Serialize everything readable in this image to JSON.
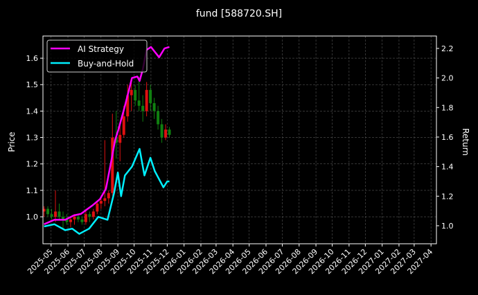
{
  "chart_data": {
    "type": "line",
    "title": "fund [588720.SH]",
    "ylabel_left": "Price",
    "ylabel_right": "Return",
    "xlim": [
      "2025-04-16",
      "2027-04-11"
    ],
    "ylim_left": [
      0.898,
      1.684
    ],
    "ylim_right": [
      0.878,
      2.284
    ],
    "grid": true,
    "legend_placement": "top-left",
    "x_ticks": [
      "2025-05",
      "2025-06",
      "2025-07",
      "2025-08",
      "2025-09",
      "2025-10",
      "2025-11",
      "2025-12",
      "2026-01",
      "2026-02",
      "2026-03",
      "2026-04",
      "2026-05",
      "2026-06",
      "2026-07",
      "2026-08",
      "2026-09",
      "2026-10",
      "2026-11",
      "2026-12",
      "2027-01",
      "2027-02",
      "2027-03",
      "2027-04"
    ],
    "y_ticks_left": [
      1.0,
      1.1,
      1.2,
      1.3,
      1.4,
      1.5,
      1.6
    ],
    "y_ticks_right": [
      1.0,
      1.2,
      1.4,
      1.6,
      1.8,
      2.0,
      2.2
    ],
    "colors": {
      "up": "#e01010",
      "down": "#108010",
      "ai": "#ff00ff",
      "bh": "#00f0ff",
      "grid": "#555555"
    },
    "price_ohlc": {
      "dates": [
        "2025-04-18",
        "2025-04-25",
        "2025-05-02",
        "2025-05-09",
        "2025-05-16",
        "2025-05-23",
        "2025-05-30",
        "2025-06-06",
        "2025-06-13",
        "2025-06-20",
        "2025-06-27",
        "2025-07-04",
        "2025-07-11",
        "2025-07-18",
        "2025-07-25",
        "2025-08-01",
        "2025-08-08",
        "2025-08-15",
        "2025-08-22",
        "2025-08-29",
        "2025-09-05",
        "2025-09-12",
        "2025-09-19",
        "2025-09-26",
        "2025-10-03",
        "2025-10-10",
        "2025-10-17",
        "2025-10-24",
        "2025-10-31",
        "2025-11-07",
        "2025-11-14",
        "2025-11-21",
        "2025-11-28",
        "2025-12-05"
      ],
      "open": [
        1.02,
        1.03,
        1.01,
        1.0,
        1.02,
        1.0,
        0.99,
        0.98,
        0.99,
        1.0,
        0.99,
        0.98,
        1.01,
        1.0,
        1.02,
        1.05,
        1.06,
        1.07,
        1.09,
        1.3,
        1.28,
        1.31,
        1.38,
        1.46,
        1.48,
        1.44,
        1.42,
        1.4,
        1.48,
        1.43,
        1.4,
        1.35,
        1.3,
        1.33
      ],
      "high": [
        1.04,
        1.04,
        1.03,
        1.1,
        1.05,
        1.02,
        1.01,
        1.0,
        1.01,
        1.01,
        1.0,
        1.03,
        1.02,
        1.03,
        1.06,
        1.08,
        1.29,
        1.1,
        1.39,
        1.4,
        1.35,
        1.42,
        1.5,
        1.52,
        1.5,
        1.53,
        1.46,
        1.51,
        1.5,
        1.45,
        1.42,
        1.37,
        1.35,
        1.34
      ],
      "low": [
        1.0,
        1.0,
        0.99,
        0.98,
        0.99,
        0.95,
        0.97,
        0.96,
        0.97,
        0.98,
        0.97,
        0.97,
        0.98,
        0.99,
        1.01,
        1.03,
        1.04,
        1.05,
        1.08,
        1.22,
        1.21,
        1.3,
        1.36,
        1.4,
        1.42,
        1.4,
        1.36,
        1.38,
        1.4,
        1.37,
        1.33,
        1.28,
        1.29,
        1.3
      ],
      "close": [
        1.03,
        1.01,
        1.0,
        1.02,
        1.0,
        0.99,
        0.98,
        0.99,
        1.0,
        0.99,
        0.98,
        1.01,
        1.0,
        1.02,
        1.05,
        1.06,
        1.07,
        1.09,
        1.3,
        1.28,
        1.31,
        1.38,
        1.46,
        1.48,
        1.44,
        1.42,
        1.4,
        1.48,
        1.43,
        1.4,
        1.35,
        1.3,
        1.33,
        1.31
      ]
    },
    "series": [
      {
        "name": "AI Strategy",
        "dates": [
          "2025-04-18",
          "2025-05-07",
          "2025-05-27",
          "2025-06-12",
          "2025-06-25",
          "2025-07-17",
          "2025-07-30",
          "2025-08-10",
          "2025-08-20",
          "2025-08-27",
          "2025-09-02",
          "2025-09-14",
          "2025-09-27",
          "2025-10-07",
          "2025-10-11",
          "2025-10-17",
          "2025-10-24",
          "2025-11-01",
          "2025-11-16",
          "2025-11-26",
          "2025-12-05"
        ],
        "values": [
          1.01,
          1.04,
          1.04,
          1.07,
          1.08,
          1.14,
          1.18,
          1.25,
          1.44,
          1.58,
          1.65,
          1.81,
          2.0,
          2.01,
          1.98,
          2.06,
          2.19,
          2.21,
          2.14,
          2.2,
          2.21
        ]
      },
      {
        "name": "Buy-and-Hold",
        "dates": [
          "2025-04-18",
          "2025-05-07",
          "2025-05-27",
          "2025-06-09",
          "2025-06-22",
          "2025-07-10",
          "2025-07-27",
          "2025-08-13",
          "2025-08-25",
          "2025-09-01",
          "2025-09-07",
          "2025-09-14",
          "2025-09-27",
          "2025-10-11",
          "2025-10-20",
          "2025-10-31",
          "2025-11-08",
          "2025-11-24",
          "2025-12-01",
          "2025-12-05"
        ],
        "values": [
          0.995,
          1.01,
          0.97,
          0.98,
          0.945,
          0.98,
          1.06,
          1.04,
          1.22,
          1.36,
          1.2,
          1.34,
          1.4,
          1.52,
          1.34,
          1.46,
          1.37,
          1.26,
          1.3,
          1.3
        ]
      }
    ]
  }
}
